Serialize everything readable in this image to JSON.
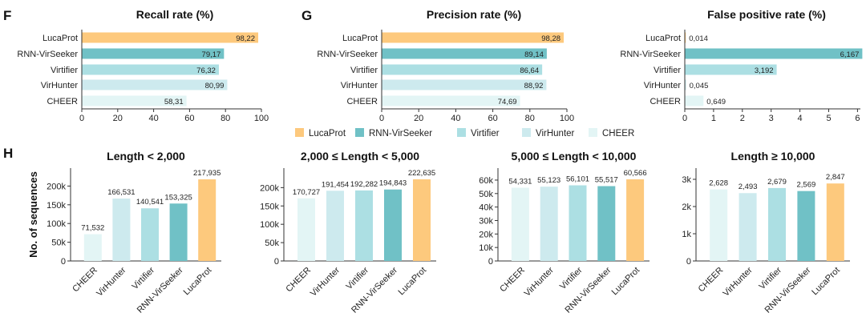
{
  "panels": {
    "f": "F",
    "g": "G",
    "h": "H"
  },
  "colors": {
    "LucaProt": "#fdc97d",
    "RNN-VirSeeker": "#70c1c6",
    "Virtifier": "#acdfe3",
    "VirHunter": "#cdeaee",
    "CHEER": "#e3f5f5"
  },
  "legend": [
    "LucaProt",
    "RNN-VirSeeker",
    "Virtifier",
    "VirHunter",
    "CHEER"
  ],
  "chart_data": [
    {
      "id": "recall",
      "type": "bar",
      "orientation": "horizontal",
      "title": "Recall rate (%)",
      "categories": [
        "LucaProt",
        "RNN-VirSeeker",
        "Virtifier",
        "VirHunter",
        "CHEER"
      ],
      "values": [
        98.22,
        79.17,
        76.32,
        80.99,
        58.31
      ],
      "value_labels": [
        "98,22",
        "79,17",
        "76,32",
        "80,99",
        "58,31"
      ],
      "xlim": [
        0,
        100
      ],
      "ticks": [
        0,
        20,
        40,
        60,
        80,
        100
      ],
      "tick_labels": [
        "0",
        "20",
        "40",
        "60",
        "80",
        "100"
      ]
    },
    {
      "id": "precision",
      "type": "bar",
      "orientation": "horizontal",
      "title": "Precision rate (%)",
      "categories": [
        "LucaProt",
        "RNN-VirSeeker",
        "Virtifier",
        "VirHunter",
        "CHEER"
      ],
      "values": [
        98.28,
        89.14,
        86.64,
        88.92,
        74.69
      ],
      "value_labels": [
        "98,28",
        "89,14",
        "86,64",
        "88,92",
        "74,69"
      ],
      "xlim": [
        0,
        100
      ],
      "ticks": [
        0,
        20,
        40,
        60,
        80,
        100
      ],
      "tick_labels": [
        "0",
        "20",
        "40",
        "60",
        "80",
        "100"
      ]
    },
    {
      "id": "fpr",
      "type": "bar",
      "orientation": "horizontal",
      "title": "False positive rate (%)",
      "categories": [
        "LucaProt",
        "RNN-VirSeeker",
        "Virtifier",
        "VirHunter",
        "CHEER"
      ],
      "values": [
        0.014,
        6.167,
        3.192,
        0.045,
        0.649
      ],
      "value_labels": [
        "0,014",
        "6,167",
        "3,192",
        "0,045",
        "0,649"
      ],
      "xlim": [
        0,
        6.1
      ],
      "ticks": [
        0,
        1,
        2,
        3,
        4,
        5,
        6
      ],
      "tick_labels": [
        "0",
        "1",
        "2",
        "3",
        "4",
        "5",
        "6"
      ]
    },
    {
      "id": "len1",
      "type": "bar",
      "orientation": "vertical",
      "title": "Length < 2,000",
      "ylabel": "No. of sequences",
      "categories": [
        "CHEER",
        "VirHunter",
        "Virtifier",
        "RNN-VirSeeker",
        "LucaProt"
      ],
      "values": [
        71532,
        166531,
        140541,
        153325,
        217935
      ],
      "value_labels": [
        "71,532",
        "166,531",
        "140,541",
        "153,325",
        "217,935"
      ],
      "ylim": [
        0,
        218000
      ],
      "ticks": [
        0,
        50000,
        100000,
        150000,
        200000
      ],
      "tick_labels": [
        "0",
        "50k",
        "100k",
        "150k",
        "200k"
      ]
    },
    {
      "id": "len2",
      "type": "bar",
      "orientation": "vertical",
      "title": "2,000 ≤ Length < 5,000",
      "categories": [
        "CHEER",
        "VirHunter",
        "Virtifier",
        "RNN-VirSeeker",
        "LucaProt"
      ],
      "values": [
        170727,
        191454,
        192282,
        194843,
        222635
      ],
      "value_labels": [
        "170,727",
        "191,454",
        "192,282",
        "194,843",
        "222,635"
      ],
      "ylim": [
        0,
        222635
      ],
      "ticks": [
        0,
        50000,
        100000,
        150000,
        200000
      ],
      "tick_labels": [
        "0",
        "50k",
        "100k",
        "150k",
        "200k"
      ]
    },
    {
      "id": "len3",
      "type": "bar",
      "orientation": "vertical",
      "title": "5,000 ≤ Length < 10,000",
      "categories": [
        "CHEER",
        "VirHunter",
        "Virtifier",
        "RNN-VirSeeker",
        "LucaProt"
      ],
      "values": [
        54331,
        55123,
        56101,
        55517,
        60566
      ],
      "value_labels": [
        "54,331",
        "55,123",
        "56,101",
        "55,517",
        "60,566"
      ],
      "ylim": [
        0,
        60566
      ],
      "ticks": [
        0,
        10000,
        20000,
        30000,
        40000,
        50000,
        60000
      ],
      "tick_labels": [
        "0",
        "10k",
        "20k",
        "30k",
        "40k",
        "50k",
        "60k"
      ]
    },
    {
      "id": "len4",
      "type": "bar",
      "orientation": "vertical",
      "title": "Length ≥ 10,000",
      "categories": [
        "CHEER",
        "VirHunter",
        "Virtifier",
        "RNN-VirSeeker",
        "LucaProt"
      ],
      "values": [
        2628,
        2493,
        2679,
        2569,
        2847
      ],
      "value_labels": [
        "2,628",
        "2,493",
        "2,679",
        "2,569",
        "2,847"
      ],
      "ylim": [
        0,
        3000
      ],
      "ticks": [
        0,
        1000,
        2000,
        3000
      ],
      "tick_labels": [
        "0",
        "1k",
        "2k",
        "3k"
      ]
    }
  ]
}
